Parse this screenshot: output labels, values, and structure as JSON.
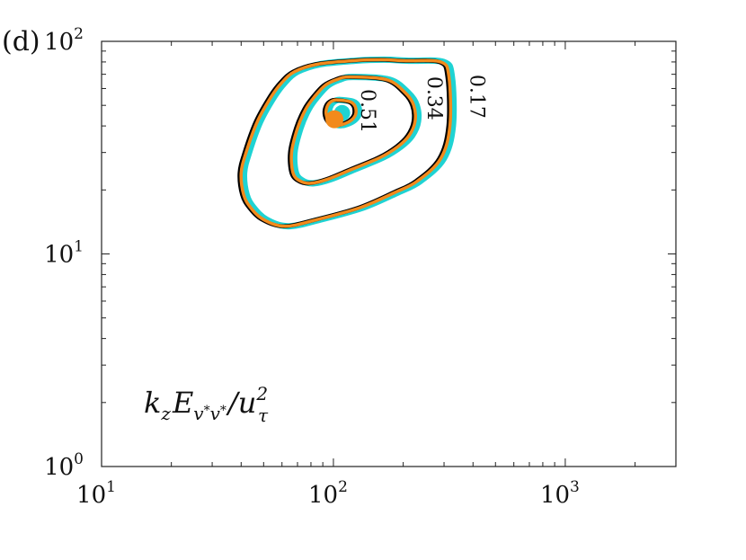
{
  "chart_data": {
    "type": "contour",
    "panel_label": "(d)",
    "annotation": {
      "k": "k",
      "k_sub": "z",
      "E": "E",
      "E_sub": "v",
      "E_sub_star1": "*",
      "E_sub_v2": "v",
      "E_sub_star2": "*",
      "slash": "/",
      "u": "u",
      "u_sup": "2",
      "u_sub": "τ"
    },
    "x_axis": {
      "scale": "log",
      "range": [
        10,
        3000
      ],
      "ticks": [
        10,
        100,
        1000
      ],
      "tick_base": "10",
      "tick_exponents": [
        "1",
        "2",
        "3"
      ]
    },
    "y_axis": {
      "scale": "log",
      "range": [
        1,
        100
      ],
      "ticks": [
        1,
        10,
        100
      ],
      "tick_base": "10",
      "tick_exponents": [
        "0",
        "1",
        "2"
      ]
    },
    "levels": [
      {
        "label": "0.17",
        "value": 0.17
      },
      {
        "label": "0.34",
        "value": 0.34
      },
      {
        "label": "0.51",
        "value": 0.51
      }
    ],
    "series": [
      {
        "color": "#1fd3d3",
        "stroke": 7,
        "offset": [
          1.03,
          1.0
        ]
      },
      {
        "color": "#000000",
        "stroke": 4.5,
        "offset": [
          0.985,
          1.0
        ]
      },
      {
        "color": "#f28a1c",
        "stroke": 3.5,
        "offset": [
          1.0,
          1.0
        ]
      }
    ],
    "contours": [
      {
        "level": 0.17,
        "points": [
          [
            205,
            81
          ],
          [
            290,
            80
          ],
          [
            315,
            68
          ],
          [
            318,
            40
          ],
          [
            290,
            28
          ],
          [
            230,
            22
          ],
          [
            185,
            19.5
          ],
          [
            130,
            16.5
          ],
          [
            85,
            14.5
          ],
          [
            62,
            13.5
          ],
          [
            50,
            14.5
          ],
          [
            44,
            16.5
          ],
          [
            41,
            19
          ],
          [
            40,
            24
          ],
          [
            42,
            30
          ],
          [
            47,
            42
          ],
          [
            54,
            55
          ],
          [
            60,
            64
          ],
          [
            68,
            72
          ],
          [
            85,
            78
          ],
          [
            120,
            81
          ],
          [
            160,
            82
          ]
        ]
      },
      {
        "level": 0.34,
        "points": [
          [
            118,
            68
          ],
          [
            170,
            66
          ],
          [
            205,
            57
          ],
          [
            222,
            50
          ],
          [
            225,
            42
          ],
          [
            212,
            36
          ],
          [
            190,
            32
          ],
          [
            160,
            28.5
          ],
          [
            120,
            25
          ],
          [
            95,
            22.5
          ],
          [
            80,
            21.5
          ],
          [
            72,
            22
          ],
          [
            67,
            24
          ],
          [
            66,
            30
          ],
          [
            70,
            39
          ],
          [
            76,
            48
          ],
          [
            83,
            55
          ],
          [
            92,
            62
          ],
          [
            103,
            66
          ]
        ]
      },
      {
        "level": 0.51,
        "points": [
          [
            104,
            53
          ],
          [
            118,
            52
          ],
          [
            124,
            49.5
          ],
          [
            125,
            46
          ],
          [
            122,
            43.5
          ],
          [
            115,
            41.5
          ],
          [
            105,
            40.3
          ],
          [
            98,
            41
          ],
          [
            94,
            43.5
          ],
          [
            93,
            47
          ],
          [
            95,
            50.5
          ],
          [
            99,
            52.5
          ]
        ]
      }
    ],
    "peaks": [
      {
        "x": 109,
        "y": 46,
        "r": 9,
        "color": "#1fd3d3"
      },
      {
        "x": 101,
        "y": 43,
        "r": 10,
        "color": "#f28a1c"
      }
    ],
    "label_positions": [
      {
        "level_label": "0.17",
        "x": 390,
        "y": 55
      },
      {
        "level_label": "0.34",
        "x": 255,
        "y": 54
      },
      {
        "level_label": "0.51",
        "x": 132,
        "y": 47
      }
    ]
  }
}
